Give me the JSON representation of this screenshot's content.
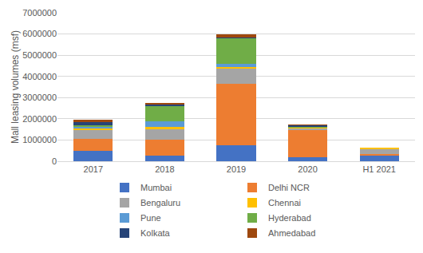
{
  "chart_data": {
    "type": "bar",
    "stacked": true,
    "y_label": "Mall leasing volumes (msf)",
    "categories": [
      "2017",
      "2018",
      "2019",
      "2020",
      "H1 2021"
    ],
    "series": [
      {
        "name": "Mumbai",
        "color": "#4472C4",
        "values": [
          500000,
          250000,
          750000,
          200000,
          250000
        ]
      },
      {
        "name": "Delhi NCR",
        "color": "#ED7D31",
        "values": [
          550000,
          750000,
          2900000,
          1300000,
          100000
        ]
      },
      {
        "name": "Bengaluru",
        "color": "#A5A5A5",
        "values": [
          400000,
          500000,
          750000,
          50000,
          250000
        ]
      },
      {
        "name": "Chennai",
        "color": "#FFC000",
        "values": [
          100000,
          100000,
          50000,
          20000,
          20000
        ]
      },
      {
        "name": "Pune",
        "color": "#5B9BD5",
        "values": [
          100000,
          300000,
          150000,
          0,
          0
        ]
      },
      {
        "name": "Hyderabad",
        "color": "#70AD47",
        "values": [
          50000,
          700000,
          1200000,
          80000,
          0
        ]
      },
      {
        "name": "Kolkata",
        "color": "#264478",
        "values": [
          150000,
          100000,
          50000,
          50000,
          0
        ]
      },
      {
        "name": "Ahmedabad",
        "color": "#9E480E",
        "values": [
          100000,
          50000,
          150000,
          30000,
          0
        ]
      }
    ],
    "ylim": [
      0,
      7000000
    ],
    "yticks": [
      0,
      1000000,
      2000000,
      3000000,
      4000000,
      5000000,
      6000000,
      7000000
    ],
    "grid": true,
    "legend": "bottom"
  }
}
